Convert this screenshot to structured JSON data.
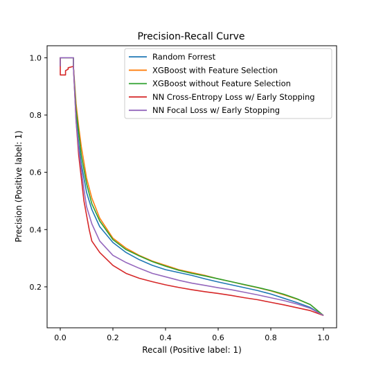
{
  "chart_data": {
    "type": "line",
    "title": "Precision-Recall Curve",
    "xlabel": "Recall (Positive label: 1)",
    "ylabel": "Precision (Positive label: 1)",
    "xlim": [
      -0.05,
      1.05
    ],
    "ylim": [
      0.057,
      1.042
    ],
    "xticks": [
      0.0,
      0.2,
      0.4,
      0.6,
      0.8,
      1.0
    ],
    "xtick_labels": [
      "0.0",
      "0.2",
      "0.4",
      "0.6",
      "0.8",
      "1.0"
    ],
    "yticks": [
      0.2,
      0.4,
      0.6,
      0.8,
      1.0
    ],
    "ytick_labels": [
      "0.2",
      "0.4",
      "0.6",
      "0.8",
      "1.0"
    ],
    "grid": false,
    "legend_position": "upper right",
    "series": [
      {
        "name": "Random Forrest",
        "color": "#1f77b4",
        "x": [
          0,
          0,
          0.05,
          0.05,
          0.06,
          0.07,
          0.08,
          0.1,
          0.12,
          0.15,
          0.2,
          0.25,
          0.3,
          0.35,
          0.4,
          0.45,
          0.5,
          0.55,
          0.6,
          0.65,
          0.7,
          0.75,
          0.8,
          0.85,
          0.9,
          0.95,
          1.0
        ],
        "y": [
          0.97,
          1.0,
          1.0,
          0.97,
          0.8,
          0.7,
          0.63,
          0.53,
          0.47,
          0.41,
          0.355,
          0.32,
          0.295,
          0.275,
          0.26,
          0.25,
          0.24,
          0.228,
          0.217,
          0.207,
          0.197,
          0.187,
          0.175,
          0.16,
          0.145,
          0.128,
          0.1
        ]
      },
      {
        "name": "XGBoost with Feature Selection",
        "color": "#ff7f0e",
        "x": [
          0,
          0,
          0.05,
          0.05,
          0.06,
          0.07,
          0.08,
          0.1,
          0.12,
          0.15,
          0.2,
          0.25,
          0.3,
          0.35,
          0.4,
          0.45,
          0.5,
          0.55,
          0.6,
          0.65,
          0.7,
          0.75,
          0.8,
          0.85,
          0.9,
          0.95,
          1.0
        ],
        "y": [
          0.97,
          1.0,
          1.0,
          0.97,
          0.84,
          0.76,
          0.69,
          0.58,
          0.51,
          0.44,
          0.37,
          0.335,
          0.31,
          0.29,
          0.275,
          0.26,
          0.25,
          0.24,
          0.228,
          0.218,
          0.207,
          0.197,
          0.186,
          0.172,
          0.157,
          0.138,
          0.1
        ]
      },
      {
        "name": "XGBoost without Feature Selection",
        "color": "#2ca02c",
        "x": [
          0,
          0,
          0.05,
          0.05,
          0.06,
          0.07,
          0.08,
          0.1,
          0.12,
          0.15,
          0.2,
          0.25,
          0.3,
          0.35,
          0.4,
          0.45,
          0.5,
          0.55,
          0.6,
          0.65,
          0.7,
          0.75,
          0.8,
          0.85,
          0.9,
          0.95,
          1.0
        ],
        "y": [
          0.97,
          1.0,
          1.0,
          0.97,
          0.82,
          0.74,
          0.66,
          0.56,
          0.49,
          0.43,
          0.365,
          0.33,
          0.308,
          0.288,
          0.272,
          0.258,
          0.247,
          0.238,
          0.228,
          0.218,
          0.208,
          0.198,
          0.187,
          0.174,
          0.158,
          0.138,
          0.1
        ]
      },
      {
        "name": "NN Cross-Entropy Loss w/ Early Stopping",
        "color": "#d62728",
        "x": [
          0,
          0,
          0.0001,
          0.0001,
          0.02,
          0.02,
          0.03,
          0.03,
          0.05,
          0.05,
          0.06,
          0.07,
          0.08,
          0.09,
          0.1,
          0.11,
          0.12,
          0.15,
          0.2,
          0.25,
          0.3,
          0.35,
          0.4,
          0.45,
          0.5,
          0.55,
          0.6,
          0.65,
          0.7,
          0.75,
          0.8,
          0.85,
          0.9,
          0.95,
          1.0
        ],
        "y": [
          0.97,
          1.0,
          1.0,
          0.94,
          0.94,
          0.955,
          0.96,
          0.965,
          0.97,
          0.97,
          0.78,
          0.66,
          0.58,
          0.5,
          0.45,
          0.4,
          0.36,
          0.32,
          0.275,
          0.247,
          0.23,
          0.218,
          0.207,
          0.198,
          0.19,
          0.183,
          0.177,
          0.17,
          0.162,
          0.155,
          0.146,
          0.137,
          0.127,
          0.117,
          0.1
        ]
      },
      {
        "name": "NN Focal Loss w/ Early Stopping",
        "color": "#9467bd",
        "x": [
          0,
          0,
          0.05,
          0.05,
          0.06,
          0.07,
          0.08,
          0.09,
          0.1,
          0.12,
          0.15,
          0.2,
          0.25,
          0.3,
          0.35,
          0.4,
          0.45,
          0.5,
          0.55,
          0.6,
          0.65,
          0.7,
          0.75,
          0.8,
          0.85,
          0.9,
          0.95,
          1.0
        ],
        "y": [
          0.97,
          1.0,
          1.0,
          0.97,
          0.78,
          0.68,
          0.61,
          0.54,
          0.48,
          0.42,
          0.36,
          0.31,
          0.285,
          0.265,
          0.247,
          0.235,
          0.223,
          0.213,
          0.205,
          0.197,
          0.19,
          0.181,
          0.172,
          0.162,
          0.152,
          0.14,
          0.125,
          0.1
        ]
      }
    ]
  }
}
